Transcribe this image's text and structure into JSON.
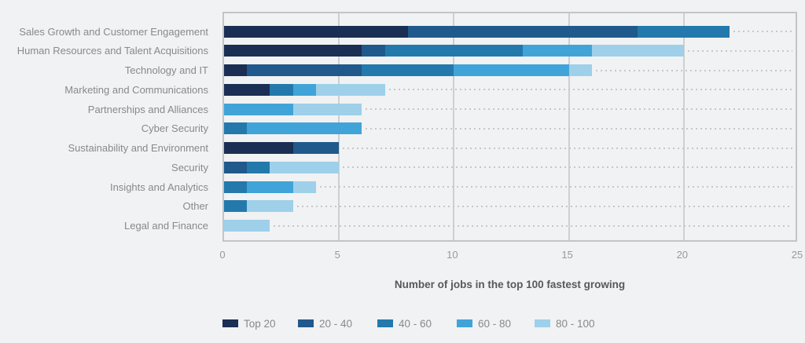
{
  "chart_data": {
    "type": "bar",
    "orientation": "horizontal",
    "stacked": true,
    "title": "",
    "xlabel": "Number of jobs in the top 100 fastest growing",
    "ylabel": "",
    "xlim": [
      0,
      25
    ],
    "xticks": [
      "0",
      "5",
      "10",
      "15",
      "20",
      "25"
    ],
    "grid": "vertical-solid",
    "legend_position": "bottom",
    "background_color": "#f1f2f3",
    "categories": [
      "Sales Growth and Customer Engagement",
      "Human Resources and Talent Acquisitions",
      "Technology and IT",
      "Marketing and Communications",
      "Partnerships and Alliances",
      "Cyber Security",
      "Sustainability and Environment",
      "Security",
      "Insights and Analytics",
      "Other",
      "Legal and Finance"
    ],
    "series": [
      {
        "name": "Top 20",
        "color": "#1b2e53",
        "values": [
          8,
          6,
          1,
          2,
          0,
          0,
          3,
          0,
          0,
          0,
          0
        ]
      },
      {
        "name": "20 - 40",
        "color": "#20598b",
        "values": [
          10,
          1,
          5,
          0,
          0,
          0,
          2,
          1,
          0,
          0,
          0
        ]
      },
      {
        "name": "40 - 60",
        "color": "#2379ac",
        "values": [
          4,
          6,
          4,
          1,
          0,
          1,
          0,
          1,
          1,
          1,
          0
        ]
      },
      {
        "name": "60 - 80",
        "color": "#41a4d8",
        "values": [
          0,
          3,
          5,
          1,
          3,
          5,
          0,
          0,
          2,
          0,
          0
        ]
      },
      {
        "name": "80 - 100",
        "color": "#9ed0e9",
        "values": [
          0,
          4,
          1,
          3,
          3,
          0,
          0,
          3,
          1,
          2,
          2
        ]
      }
    ],
    "totals": [
      22,
      20,
      16,
      7,
      6,
      6,
      5,
      5,
      4,
      3,
      2
    ]
  }
}
